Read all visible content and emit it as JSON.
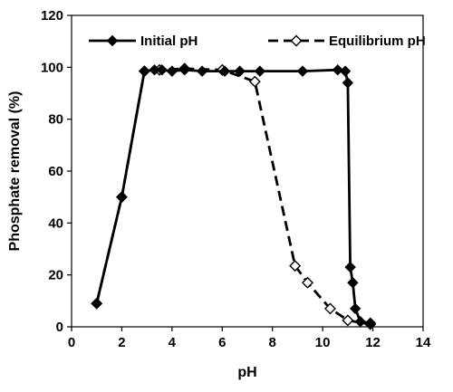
{
  "chart_data": {
    "type": "line",
    "title": "",
    "xlabel": "pH",
    "ylabel": "Phosphate removal (%)",
    "xlim": [
      0,
      14
    ],
    "ylim": [
      0,
      120
    ],
    "xticks": [
      "0",
      "2",
      "4",
      "6",
      "8",
      "10",
      "12",
      "14"
    ],
    "yticks": [
      "0",
      "20",
      "40",
      "60",
      "80",
      "100",
      "120"
    ],
    "grid": false,
    "legend_position": "top",
    "series": [
      {
        "name": "Initial pH",
        "marker": "filled-diamond",
        "line": "solid",
        "color": "#000000",
        "x": [
          1.0,
          2.0,
          2.9,
          3.3,
          3.6,
          4.0,
          4.5,
          5.2,
          6.1,
          6.7,
          7.5,
          9.2,
          10.6,
          10.9,
          11.0,
          11.1,
          11.2,
          11.3,
          11.5,
          11.9
        ],
        "y": [
          9,
          50,
          98.5,
          99,
          99,
          98.5,
          99,
          98.5,
          98.5,
          98.5,
          98.5,
          98.5,
          99,
          98.5,
          94,
          23,
          17,
          7,
          2,
          1.5
        ]
      },
      {
        "name": "Equilibrium pH",
        "marker": "open-diamond",
        "line": "dashed",
        "color": "#000000",
        "x": [
          1.0,
          2.0,
          2.9,
          3.5,
          4.5,
          6.0,
          7.3,
          8.9,
          9.4,
          10.3,
          11.0,
          11.9
        ],
        "y": [
          9,
          50,
          98.5,
          99,
          99.5,
          99,
          94.5,
          23.5,
          17,
          7,
          2.5,
          1
        ]
      }
    ]
  }
}
